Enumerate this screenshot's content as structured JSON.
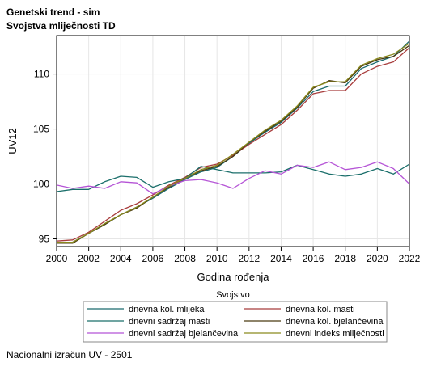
{
  "header": {
    "title_line1": "Genetski trend - sim",
    "title_line2": "Svojstva mliječnosti TD"
  },
  "footnote": "Nacionalni izračun UV - 2501",
  "chart_data": {
    "type": "line",
    "xlabel": "Godina rođenja",
    "ylabel": "UV12",
    "xlim": [
      2000,
      2022
    ],
    "ylim": [
      94.3,
      113.5
    ],
    "xticks": [
      2000,
      2002,
      2004,
      2006,
      2008,
      2010,
      2012,
      2014,
      2016,
      2018,
      2020,
      2022
    ],
    "yticks": [
      95,
      100,
      105,
      110
    ],
    "grid": true,
    "legend_title": "Svojstvo",
    "legend_position": "bottom",
    "x": [
      2000,
      2001,
      2002,
      2003,
      2004,
      2005,
      2006,
      2007,
      2008,
      2009,
      2010,
      2011,
      2012,
      2013,
      2014,
      2015,
      2016,
      2017,
      2018,
      2019,
      2020,
      2021,
      2022
    ],
    "series": [
      {
        "name": "dnevna kol. mlijeka",
        "color": "#1a6a6e",
        "values": [
          94.7,
          94.7,
          95.5,
          96.3,
          97.2,
          97.9,
          98.7,
          99.6,
          100.4,
          101.1,
          101.5,
          102.5,
          103.7,
          104.7,
          105.6,
          106.9,
          108.4,
          108.9,
          108.9,
          110.5,
          111.1,
          111.6,
          113.0
        ]
      },
      {
        "name": "dnevna kol. masti",
        "color": "#a83c3c",
        "values": [
          94.8,
          94.9,
          95.6,
          96.6,
          97.6,
          98.2,
          99.0,
          99.9,
          100.6,
          101.5,
          101.8,
          102.6,
          103.6,
          104.5,
          105.4,
          106.7,
          108.2,
          108.5,
          108.5,
          110.0,
          110.7,
          111.1,
          112.4
        ]
      },
      {
        "name": "dnevni sadržaj masti",
        "color": "#1b6f6b",
        "values": [
          99.3,
          99.5,
          99.5,
          100.2,
          100.7,
          100.6,
          99.7,
          100.2,
          100.5,
          101.6,
          101.3,
          101.0,
          101.0,
          101.0,
          101.1,
          101.7,
          101.3,
          100.9,
          100.7,
          100.9,
          101.4,
          100.9,
          101.8
        ]
      },
      {
        "name": "dnevna kol. bjelančevina",
        "color": "#4a3a10",
        "values": [
          94.6,
          94.6,
          95.5,
          96.3,
          97.2,
          97.8,
          98.8,
          99.7,
          100.5,
          101.2,
          101.6,
          102.5,
          103.8,
          104.8,
          105.7,
          107.0,
          108.7,
          109.4,
          109.2,
          110.7,
          111.3,
          111.6,
          112.6
        ]
      },
      {
        "name": "dnevni sadržaj bjelančevina",
        "color": "#b554d6",
        "values": [
          99.9,
          99.6,
          99.8,
          99.6,
          100.2,
          100.1,
          99.1,
          99.8,
          100.3,
          100.4,
          100.1,
          99.6,
          100.5,
          101.2,
          100.9,
          101.7,
          101.5,
          102.0,
          101.3,
          101.5,
          102.0,
          101.4,
          100.0
        ]
      },
      {
        "name": "dnevni indeks mliječnosti",
        "color": "#8a8a1e",
        "values": [
          94.7,
          94.7,
          95.5,
          96.4,
          97.2,
          97.9,
          98.8,
          99.8,
          100.5,
          101.3,
          101.7,
          102.7,
          103.8,
          104.9,
          105.8,
          107.1,
          108.8,
          109.3,
          109.3,
          110.8,
          111.4,
          111.8,
          112.8
        ]
      }
    ]
  }
}
